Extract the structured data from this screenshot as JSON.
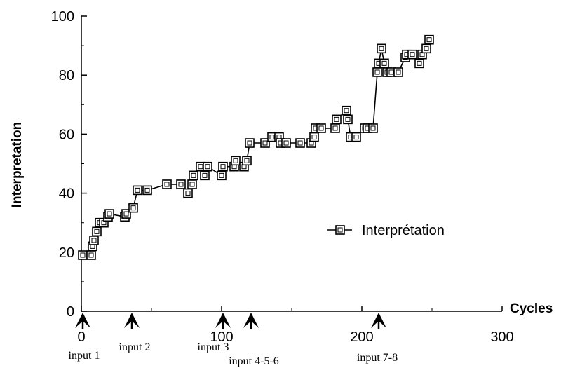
{
  "chart_data": {
    "type": "line",
    "xlabel": "Cycles",
    "ylabel": "Interpretation",
    "xlim": [
      0,
      300
    ],
    "ylim": [
      0,
      100
    ],
    "xticks": [
      0,
      100,
      200,
      300
    ],
    "yticks": [
      0,
      20,
      40,
      60,
      80,
      100
    ],
    "x_tick_labels": [
      "0",
      "100",
      "200",
      "300"
    ],
    "y_tick_labels": [
      "0",
      "20",
      "40",
      "60",
      "80",
      "100"
    ],
    "grid": false,
    "legend_position": "right-middle",
    "series": [
      {
        "name": "Interprétation",
        "marker": "square",
        "x": [
          1,
          7,
          8,
          9,
          11,
          13,
          16,
          19,
          20,
          31,
          32,
          37,
          40,
          47,
          61,
          71,
          76,
          79,
          80,
          85,
          88,
          90,
          100,
          101,
          109,
          110,
          116,
          118,
          120,
          131,
          136,
          141,
          142,
          146,
          156,
          164,
          166,
          167,
          171,
          181,
          182,
          189,
          190,
          192,
          196,
          202,
          204,
          208,
          211,
          212,
          214,
          216,
          218,
          221,
          226,
          231,
          232,
          236,
          241,
          243,
          246,
          248
        ],
        "y": [
          19,
          19,
          22,
          24,
          27,
          30,
          30,
          32,
          33,
          32,
          33,
          35,
          41,
          41,
          43,
          43,
          40,
          43,
          46,
          49,
          46,
          49,
          46,
          49,
          49,
          51,
          49,
          51,
          57,
          57,
          59,
          59,
          57,
          57,
          57,
          57,
          59,
          62,
          62,
          62,
          65,
          68,
          65,
          59,
          59,
          62,
          62,
          62,
          81,
          84,
          89,
          84,
          81,
          81,
          81,
          86,
          87,
          87,
          84,
          87,
          89,
          92
        ]
      }
    ],
    "annotations": [
      {
        "label": "input 1",
        "x": 1
      },
      {
        "label": "input 2",
        "x": 36
      },
      {
        "label": "input 3",
        "x": 101
      },
      {
        "label": "input 4-5-6",
        "x": 121
      },
      {
        "label": "input 7-8",
        "x": 212
      }
    ]
  },
  "colors": {
    "axis": "#000000",
    "line": "#000000",
    "marker_fill": "#ffffff",
    "background": "#ffffff"
  }
}
